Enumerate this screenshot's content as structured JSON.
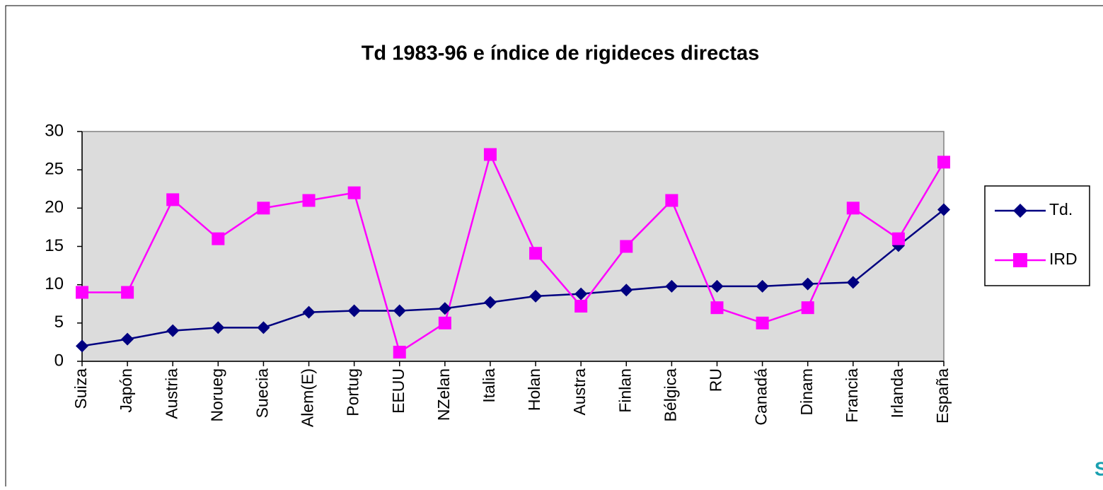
{
  "chart_data": {
    "type": "line",
    "title": "Td 1983-96 e índice de rigideces directas",
    "categories": [
      "Suiza",
      "Japón",
      "Austria",
      "Norueg",
      "Suecia",
      "Alem(E)",
      "Portug",
      "EEUU",
      "NZelan",
      "Italia",
      "Holan",
      "Austra",
      "Finlan",
      "Bélgica",
      "RU",
      "Canadá",
      "Dinam",
      "Francia",
      "Irlanda",
      "España"
    ],
    "series": [
      {
        "name": "Td.",
        "color": "#000080",
        "marker": "diamond",
        "values": [
          2.0,
          2.9,
          4.0,
          4.4,
          4.4,
          6.4,
          6.6,
          6.6,
          6.9,
          7.7,
          8.5,
          8.8,
          9.3,
          9.8,
          9.8,
          9.8,
          10.1,
          10.3,
          15.1,
          19.8
        ]
      },
      {
        "name": "IRD",
        "color": "#ff00ff",
        "marker": "square",
        "values": [
          9,
          9,
          21.1,
          16,
          20,
          21,
          22,
          1.2,
          5,
          27,
          14.1,
          7.2,
          15,
          21,
          7,
          5,
          7,
          20,
          16,
          26
        ]
      }
    ],
    "ylim": [
      0,
      30
    ],
    "yticks": [
      0,
      5,
      10,
      15,
      20,
      25,
      30
    ],
    "grid": false,
    "plot_background": "#dcdcdc",
    "legend": "right",
    "annotation": "S"
  }
}
